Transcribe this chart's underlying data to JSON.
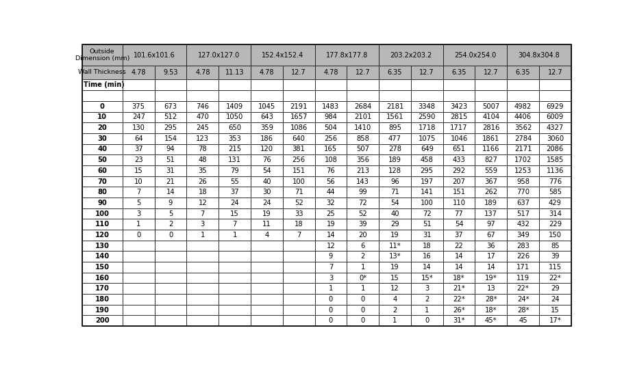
{
  "bg_header": "#b8b8b8",
  "bg_white": "#ffffff",
  "border_color": "#000000",
  "text_color": "#000000",
  "times": [
    0,
    10,
    20,
    30,
    40,
    50,
    60,
    70,
    80,
    90,
    100,
    110,
    120,
    130,
    140,
    150,
    160,
    170,
    180,
    190,
    200
  ],
  "wt_labels": [
    "4.78",
    "9.53",
    "4.78",
    "11.13",
    "4.78",
    "12.7",
    "4.78",
    "12.7",
    "6.35",
    "12.7",
    "6.35",
    "12.7",
    "6.35",
    "12.7"
  ],
  "dim_spans": [
    {
      "label": "101.6x101.6",
      "start": 1,
      "end": 3
    },
    {
      "label": "127.0x127.0",
      "start": 3,
      "end": 5
    },
    {
      "label": "152.4x152.4",
      "start": 5,
      "end": 7
    },
    {
      "label": "177.8x177.8",
      "start": 7,
      "end": 9
    },
    {
      "label": "203.2x203.2",
      "start": 9,
      "end": 11
    },
    {
      "label": "254.0x254.0",
      "start": 11,
      "end": 13
    },
    {
      "label": "304.8x304.8",
      "start": 13,
      "end": 15
    }
  ],
  "data": [
    [
      "375",
      "673",
      "746",
      "1409",
      "1045",
      "2191",
      "1483",
      "2684",
      "2181",
      "3348",
      "3423",
      "5007",
      "4982",
      "6929"
    ],
    [
      "247",
      "512",
      "470",
      "1050",
      "643",
      "1657",
      "984",
      "2101",
      "1561",
      "2590",
      "2815",
      "4104",
      "4406",
      "6009"
    ],
    [
      "130",
      "295",
      "245",
      "650",
      "359",
      "1086",
      "504",
      "1410",
      "895",
      "1718",
      "1717",
      "2816",
      "3562",
      "4327"
    ],
    [
      "64",
      "154",
      "123",
      "353",
      "186",
      "640",
      "256",
      "858",
      "477",
      "1075",
      "1046",
      "1861",
      "2784",
      "3060"
    ],
    [
      "37",
      "94",
      "78",
      "215",
      "120",
      "381",
      "165",
      "507",
      "278",
      "649",
      "651",
      "1166",
      "2171",
      "2086"
    ],
    [
      "23",
      "51",
      "48",
      "131",
      "76",
      "256",
      "108",
      "356",
      "189",
      "458",
      "433",
      "827",
      "1702",
      "1585"
    ],
    [
      "15",
      "31",
      "35",
      "79",
      "54",
      "151",
      "76",
      "213",
      "128",
      "295",
      "292",
      "559",
      "1253",
      "1136"
    ],
    [
      "10",
      "21",
      "26",
      "55",
      "40",
      "100",
      "56",
      "143",
      "96",
      "197",
      "207",
      "367",
      "958",
      "776"
    ],
    [
      "7",
      "14",
      "18",
      "37",
      "30",
      "71",
      "44",
      "99",
      "71",
      "141",
      "151",
      "262",
      "770",
      "585"
    ],
    [
      "5",
      "9",
      "12",
      "24",
      "24",
      "52",
      "32",
      "72",
      "54",
      "100",
      "110",
      "189",
      "637",
      "429"
    ],
    [
      "3",
      "5",
      "7",
      "15",
      "19",
      "33",
      "25",
      "52",
      "40",
      "72",
      "77",
      "137",
      "517",
      "314"
    ],
    [
      "1",
      "2",
      "3",
      "7",
      "11",
      "18",
      "19",
      "39",
      "29",
      "51",
      "54",
      "97",
      "432",
      "229"
    ],
    [
      "0",
      "0",
      "1",
      "1",
      "4",
      "7",
      "14",
      "20",
      "19",
      "31",
      "37",
      "67",
      "349",
      "150"
    ],
    [
      "",
      "",
      "",
      "",
      "",
      "",
      "12",
      "6",
      "11*",
      "18",
      "22",
      "36",
      "283",
      "85"
    ],
    [
      "",
      "",
      "",
      "",
      "",
      "",
      "9",
      "2",
      "13*",
      "16",
      "14",
      "17",
      "226",
      "39"
    ],
    [
      "",
      "",
      "",
      "",
      "",
      "",
      "7",
      "1",
      "19",
      "14",
      "14",
      "14",
      "171",
      "115"
    ],
    [
      "",
      "",
      "",
      "",
      "",
      "",
      "3",
      "0*",
      "15",
      "15*",
      "18*",
      "19*",
      "119",
      "22*"
    ],
    [
      "",
      "",
      "",
      "",
      "",
      "",
      "1",
      "1",
      "12",
      "3",
      "21*",
      "13",
      "22*",
      "29"
    ],
    [
      "",
      "",
      "",
      "",
      "",
      "",
      "0",
      "0",
      "4",
      "2",
      "22*",
      "28*",
      "24*",
      "24"
    ],
    [
      "",
      "",
      "",
      "",
      "",
      "",
      "0",
      "0",
      "2",
      "1",
      "26*",
      "18*",
      "28*",
      "15"
    ],
    [
      "",
      "",
      "",
      "",
      "",
      "",
      "0",
      "0",
      "1",
      "0",
      "31*",
      "45*",
      "45",
      "17*"
    ]
  ]
}
